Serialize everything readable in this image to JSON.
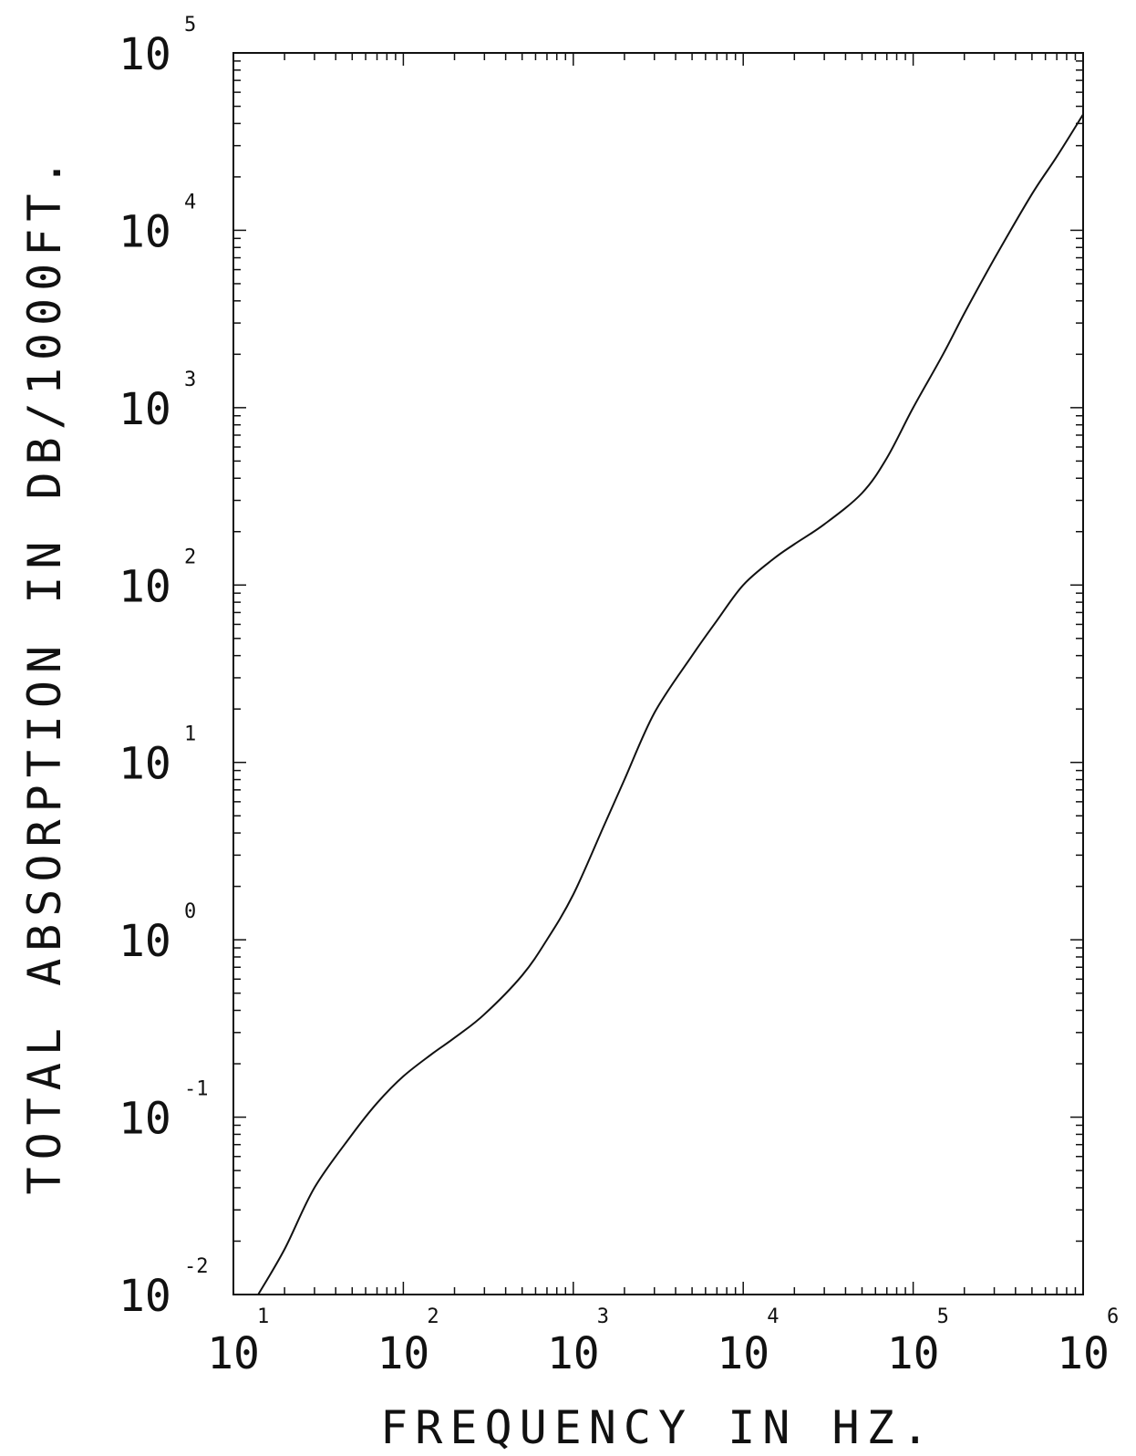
{
  "chart_data": {
    "type": "line",
    "title": "",
    "xlabel": "FREQUENCY IN HZ.",
    "ylabel": "TOTAL ABSORPTION IN DB/1000FT.",
    "xscale": "log",
    "yscale": "log",
    "xlim": [
      10,
      1000000
    ],
    "ylim": [
      0.01,
      100000
    ],
    "grid": false,
    "legend": "none",
    "x_ticks": [
      {
        "base": "10",
        "exp": "1"
      },
      {
        "base": "10",
        "exp": "2"
      },
      {
        "base": "10",
        "exp": "3"
      },
      {
        "base": "10",
        "exp": "4"
      },
      {
        "base": "10",
        "exp": "5"
      },
      {
        "base": "10",
        "exp": "6"
      }
    ],
    "y_ticks": [
      {
        "base": "10",
        "exp": "-2"
      },
      {
        "base": "10",
        "exp": "-1"
      },
      {
        "base": "10",
        "exp": "0"
      },
      {
        "base": "10",
        "exp": "1"
      },
      {
        "base": "10",
        "exp": "2"
      },
      {
        "base": "10",
        "exp": "3"
      },
      {
        "base": "10",
        "exp": "4"
      },
      {
        "base": "10",
        "exp": "5"
      }
    ],
    "series": [
      {
        "x": [
          14,
          20,
          30,
          50,
          70,
          100,
          150,
          200,
          300,
          500,
          700,
          1000,
          1500,
          2000,
          3000,
          5000,
          7000,
          10000,
          15000,
          20000,
          30000,
          50000,
          70000,
          100000,
          150000,
          200000,
          300000,
          500000,
          700000,
          1000000
        ],
        "y": [
          0.01,
          0.018,
          0.04,
          0.08,
          0.12,
          0.17,
          0.23,
          0.28,
          0.38,
          0.63,
          1.0,
          1.8,
          4.3,
          8.0,
          19,
          40,
          63,
          100,
          140,
          170,
          220,
          330,
          520,
          1000,
          2000,
          3400,
          6900,
          16000,
          26000,
          45000
        ]
      }
    ]
  }
}
